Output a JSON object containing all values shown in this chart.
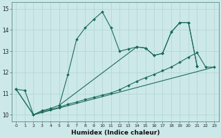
{
  "xlabel": "Humidex (Indice chaleur)",
  "bg_color": "#cce8e8",
  "grid_color": "#b0d4d4",
  "line_color": "#1a6b5a",
  "xlim": [
    -0.5,
    23.5
  ],
  "ylim": [
    9.7,
    15.3
  ],
  "xticks": [
    0,
    1,
    2,
    3,
    4,
    5,
    6,
    7,
    8,
    9,
    10,
    11,
    12,
    13,
    14,
    15,
    16,
    17,
    18,
    19,
    20,
    21,
    22,
    23
  ],
  "yticks": [
    10,
    11,
    12,
    13,
    14,
    15
  ],
  "line1_x": [
    0,
    1,
    2,
    3,
    4,
    5,
    6,
    7,
    8,
    9,
    10,
    11,
    12,
    13,
    14,
    15,
    16,
    17,
    18,
    19,
    20,
    21
  ],
  "line1_y": [
    11.2,
    11.15,
    10.0,
    10.2,
    10.3,
    10.45,
    11.9,
    13.55,
    14.1,
    14.5,
    14.85,
    14.1,
    13.0,
    13.1,
    13.2,
    13.15,
    12.8,
    12.9,
    13.9,
    14.35,
    14.35,
    12.3
  ],
  "line2_x": [
    0,
    2,
    3,
    4,
    5,
    6,
    7,
    8,
    9,
    10,
    11,
    12,
    13,
    14,
    15,
    16,
    17,
    18,
    19,
    20,
    21,
    22,
    23
  ],
  "line2_y": [
    11.2,
    10.0,
    10.15,
    10.25,
    10.35,
    10.5,
    10.6,
    10.72,
    10.82,
    10.93,
    11.03,
    11.18,
    11.38,
    11.58,
    11.75,
    11.9,
    12.08,
    12.25,
    12.48,
    12.72,
    12.93,
    12.25,
    12.25
  ],
  "line3_x": [
    0,
    2,
    23
  ],
  "line3_y": [
    11.2,
    10.0,
    12.25
  ],
  "line4_x": [
    5,
    14,
    15,
    16,
    17,
    18,
    19,
    20,
    21
  ],
  "line4_y": [
    10.45,
    13.2,
    13.15,
    12.8,
    12.9,
    13.9,
    14.35,
    14.35,
    12.3
  ]
}
